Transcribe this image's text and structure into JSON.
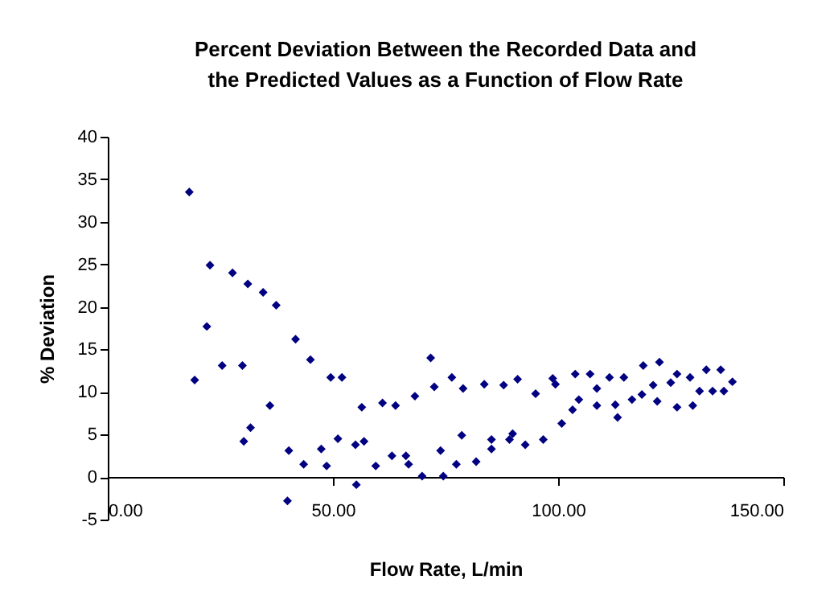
{
  "chart_data": {
    "type": "scatter",
    "title": "Percent Deviation Between the Recorded Data and\nthe Predicted Values as a Function of Flow Rate",
    "xlabel": "Flow Rate, L/min",
    "ylabel": "% Deviation",
    "marker": "diamond",
    "grid": false,
    "xlim": [
      0,
      150
    ],
    "xticks": [
      {
        "value": 0,
        "label": "0.00"
      },
      {
        "value": 50,
        "label": "50.00"
      },
      {
        "value": 100,
        "label": "100.00"
      },
      {
        "value": 150,
        "label": "150.00"
      }
    ],
    "ylim": [
      -5,
      40
    ],
    "yticks": [
      -5,
      0,
      5,
      10,
      15,
      20,
      25,
      30,
      35,
      40
    ],
    "series": [
      {
        "color": "#000080",
        "x": [
          18.1,
          19.3,
          22.7,
          22.0,
          25.4,
          27.7,
          31.1,
          29.9,
          30.2,
          31.7,
          34.5,
          36.0,
          37.4,
          41.7,
          40.2,
          39.9,
          43.5,
          45.0,
          47.4,
          48.6,
          49.5,
          52.0,
          51.1,
          55.0,
          55.2,
          56.4,
          56.9,
          59.5,
          61.0,
          63.9,
          63.1,
          66.2,
          66.8,
          68.2,
          69.8,
          71.7,
          72.5,
          74.5,
          73.9,
          76.4,
          78.9,
          77.4,
          78.6,
          81.8,
          83.6,
          85.2,
          85.2,
          87.9,
          89.2,
          89.9,
          91.0,
          92.7,
          95.0,
          96.7,
          98.8,
          99.4,
          100.8,
          103.2,
          103.8,
          104.6,
          107.1,
          108.6,
          108.6,
          111.4,
          112.7,
          113.2,
          114.6,
          116.4,
          118.6,
          118.9,
          121.1,
          122.0,
          122.5,
          125.0,
          126.4,
          126.4,
          129.3,
          129.9,
          131.4,
          132.9,
          134.3,
          136.1,
          136.8,
          138.7
        ],
        "values": [
          33.5,
          11.4,
          24.9,
          17.7,
          13.1,
          24.0,
          22.7,
          13.1,
          4.2,
          5.8,
          21.7,
          8.4,
          20.2,
          16.2,
          3.1,
          -2.8,
          1.5,
          13.8,
          3.3,
          1.3,
          11.7,
          11.7,
          4.5,
          3.8,
          -0.9,
          8.2,
          4.2,
          1.3,
          8.7,
          8.4,
          2.5,
          2.5,
          1.5,
          9.5,
          0.1,
          14.0,
          10.6,
          0.1,
          3.1,
          11.7,
          10.4,
          1.5,
          4.9,
          1.8,
          10.9,
          4.4,
          3.3,
          10.8,
          4.4,
          5.1,
          11.5,
          3.8,
          9.8,
          4.4,
          11.6,
          10.9,
          6.3,
          7.9,
          12.1,
          9.1,
          12.1,
          10.4,
          8.4,
          11.7,
          8.5,
          7.0,
          11.7,
          9.1,
          9.7,
          13.1,
          10.8,
          8.9,
          13.5,
          11.1,
          12.1,
          8.2,
          11.7,
          8.4,
          10.1,
          12.6,
          10.1,
          12.6,
          10.1,
          11.2
        ]
      }
    ]
  }
}
